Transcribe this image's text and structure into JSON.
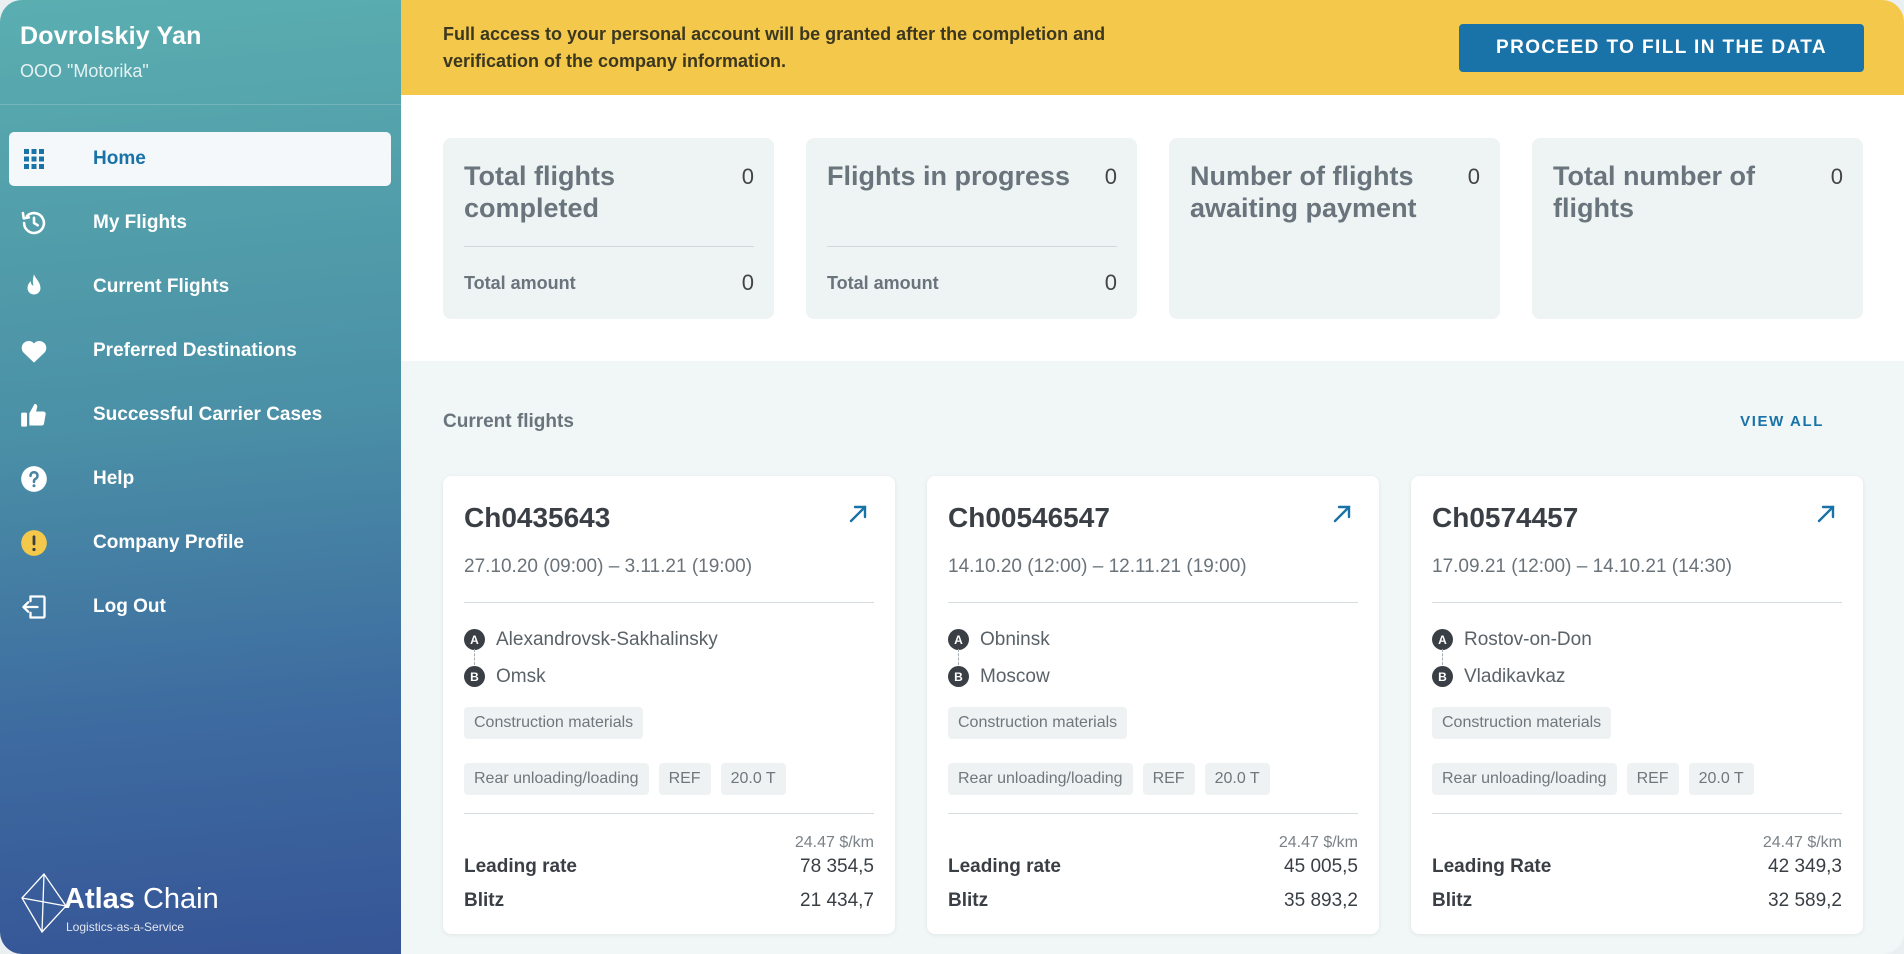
{
  "user": {
    "name": "Dovrolskiy Yan",
    "company": "OOO \"Motorika\""
  },
  "nav": [
    {
      "label": "Home",
      "icon": "grid-icon",
      "active": true
    },
    {
      "label": "My Flights",
      "icon": "history-icon"
    },
    {
      "label": "Current Flights",
      "icon": "flame-icon"
    },
    {
      "label": "Preferred Destinations",
      "icon": "heart-icon"
    },
    {
      "label": "Successful Carrier Cases",
      "icon": "thumbs-up-icon"
    },
    {
      "label": "Help",
      "icon": "help-icon"
    },
    {
      "label": "Company Profile",
      "icon": "warning-icon"
    },
    {
      "label": "Log Out",
      "icon": "logout-icon"
    }
  ],
  "logo": {
    "name_bold": "Atlas",
    "name": "Chain",
    "tagline": "Logistics-as-a-Service"
  },
  "banner": {
    "text": "Full access to your personal account will be granted after the completion and verification of the company information.",
    "button": "PROCEED TO FILL IN THE DATA"
  },
  "stats": [
    {
      "title": "Total flights completed",
      "value": "0",
      "foot_label": "Total amount",
      "foot_value": "0"
    },
    {
      "title": "Flights in progress",
      "value": "0",
      "foot_label": "Total amount",
      "foot_value": "0"
    },
    {
      "title": "Number of flights awaiting payment",
      "value": "0"
    },
    {
      "title": "Total number of flights",
      "value": "0"
    }
  ],
  "flights_section": {
    "title": "Current flights",
    "view_all": "VIEW ALL"
  },
  "flights": [
    {
      "id": "Ch0435643",
      "dates": "27.10.20 (09:00) – 3.11.21 (19:00)",
      "from_marker": "A",
      "from": "Alexandrovsk-Sakhalinsky",
      "to_marker": "B",
      "to": "Omsk",
      "cargo": "Construction materials",
      "loading": "Rear unloading/loading",
      "trailer": "REF",
      "weight": "20.0 T",
      "rate_unit": "24.47 $/km",
      "rate_label": "Leading rate",
      "rate_value": "78 354,5",
      "blitz_label": "Blitz",
      "blitz_value": "21 434,7"
    },
    {
      "id": "Ch00546547",
      "dates": "14.10.20 (12:00) – 12.11.21 (19:00)",
      "from_marker": "A",
      "from": "Obninsk",
      "to_marker": "B",
      "to": "Moscow",
      "cargo": "Construction materials",
      "loading": "Rear unloading/loading",
      "trailer": "REF",
      "weight": "20.0 T",
      "rate_unit": "24.47 $/km",
      "rate_label": "Leading rate",
      "rate_value": "45 005,5",
      "blitz_label": "Blitz",
      "blitz_value": "35 893,2"
    },
    {
      "id": "Ch0574457",
      "dates": "17.09.21 (12:00) – 14.10.21 (14:30)",
      "from_marker": "A",
      "from": "Rostov-on-Don",
      "to_marker": "B",
      "to": "Vladikavkaz",
      "cargo": "Construction materials",
      "loading": "Rear unloading/loading",
      "trailer": "REF",
      "weight": "20.0 T",
      "rate_unit": "24.47 $/km",
      "rate_label": "Leading Rate",
      "rate_value": "42 349,3",
      "blitz_label": "Blitz",
      "blitz_value": "32 589,2"
    }
  ],
  "colors": {
    "accent": "#1a73a8",
    "banner": "#f4c84a",
    "warning": "#f4c84a"
  }
}
